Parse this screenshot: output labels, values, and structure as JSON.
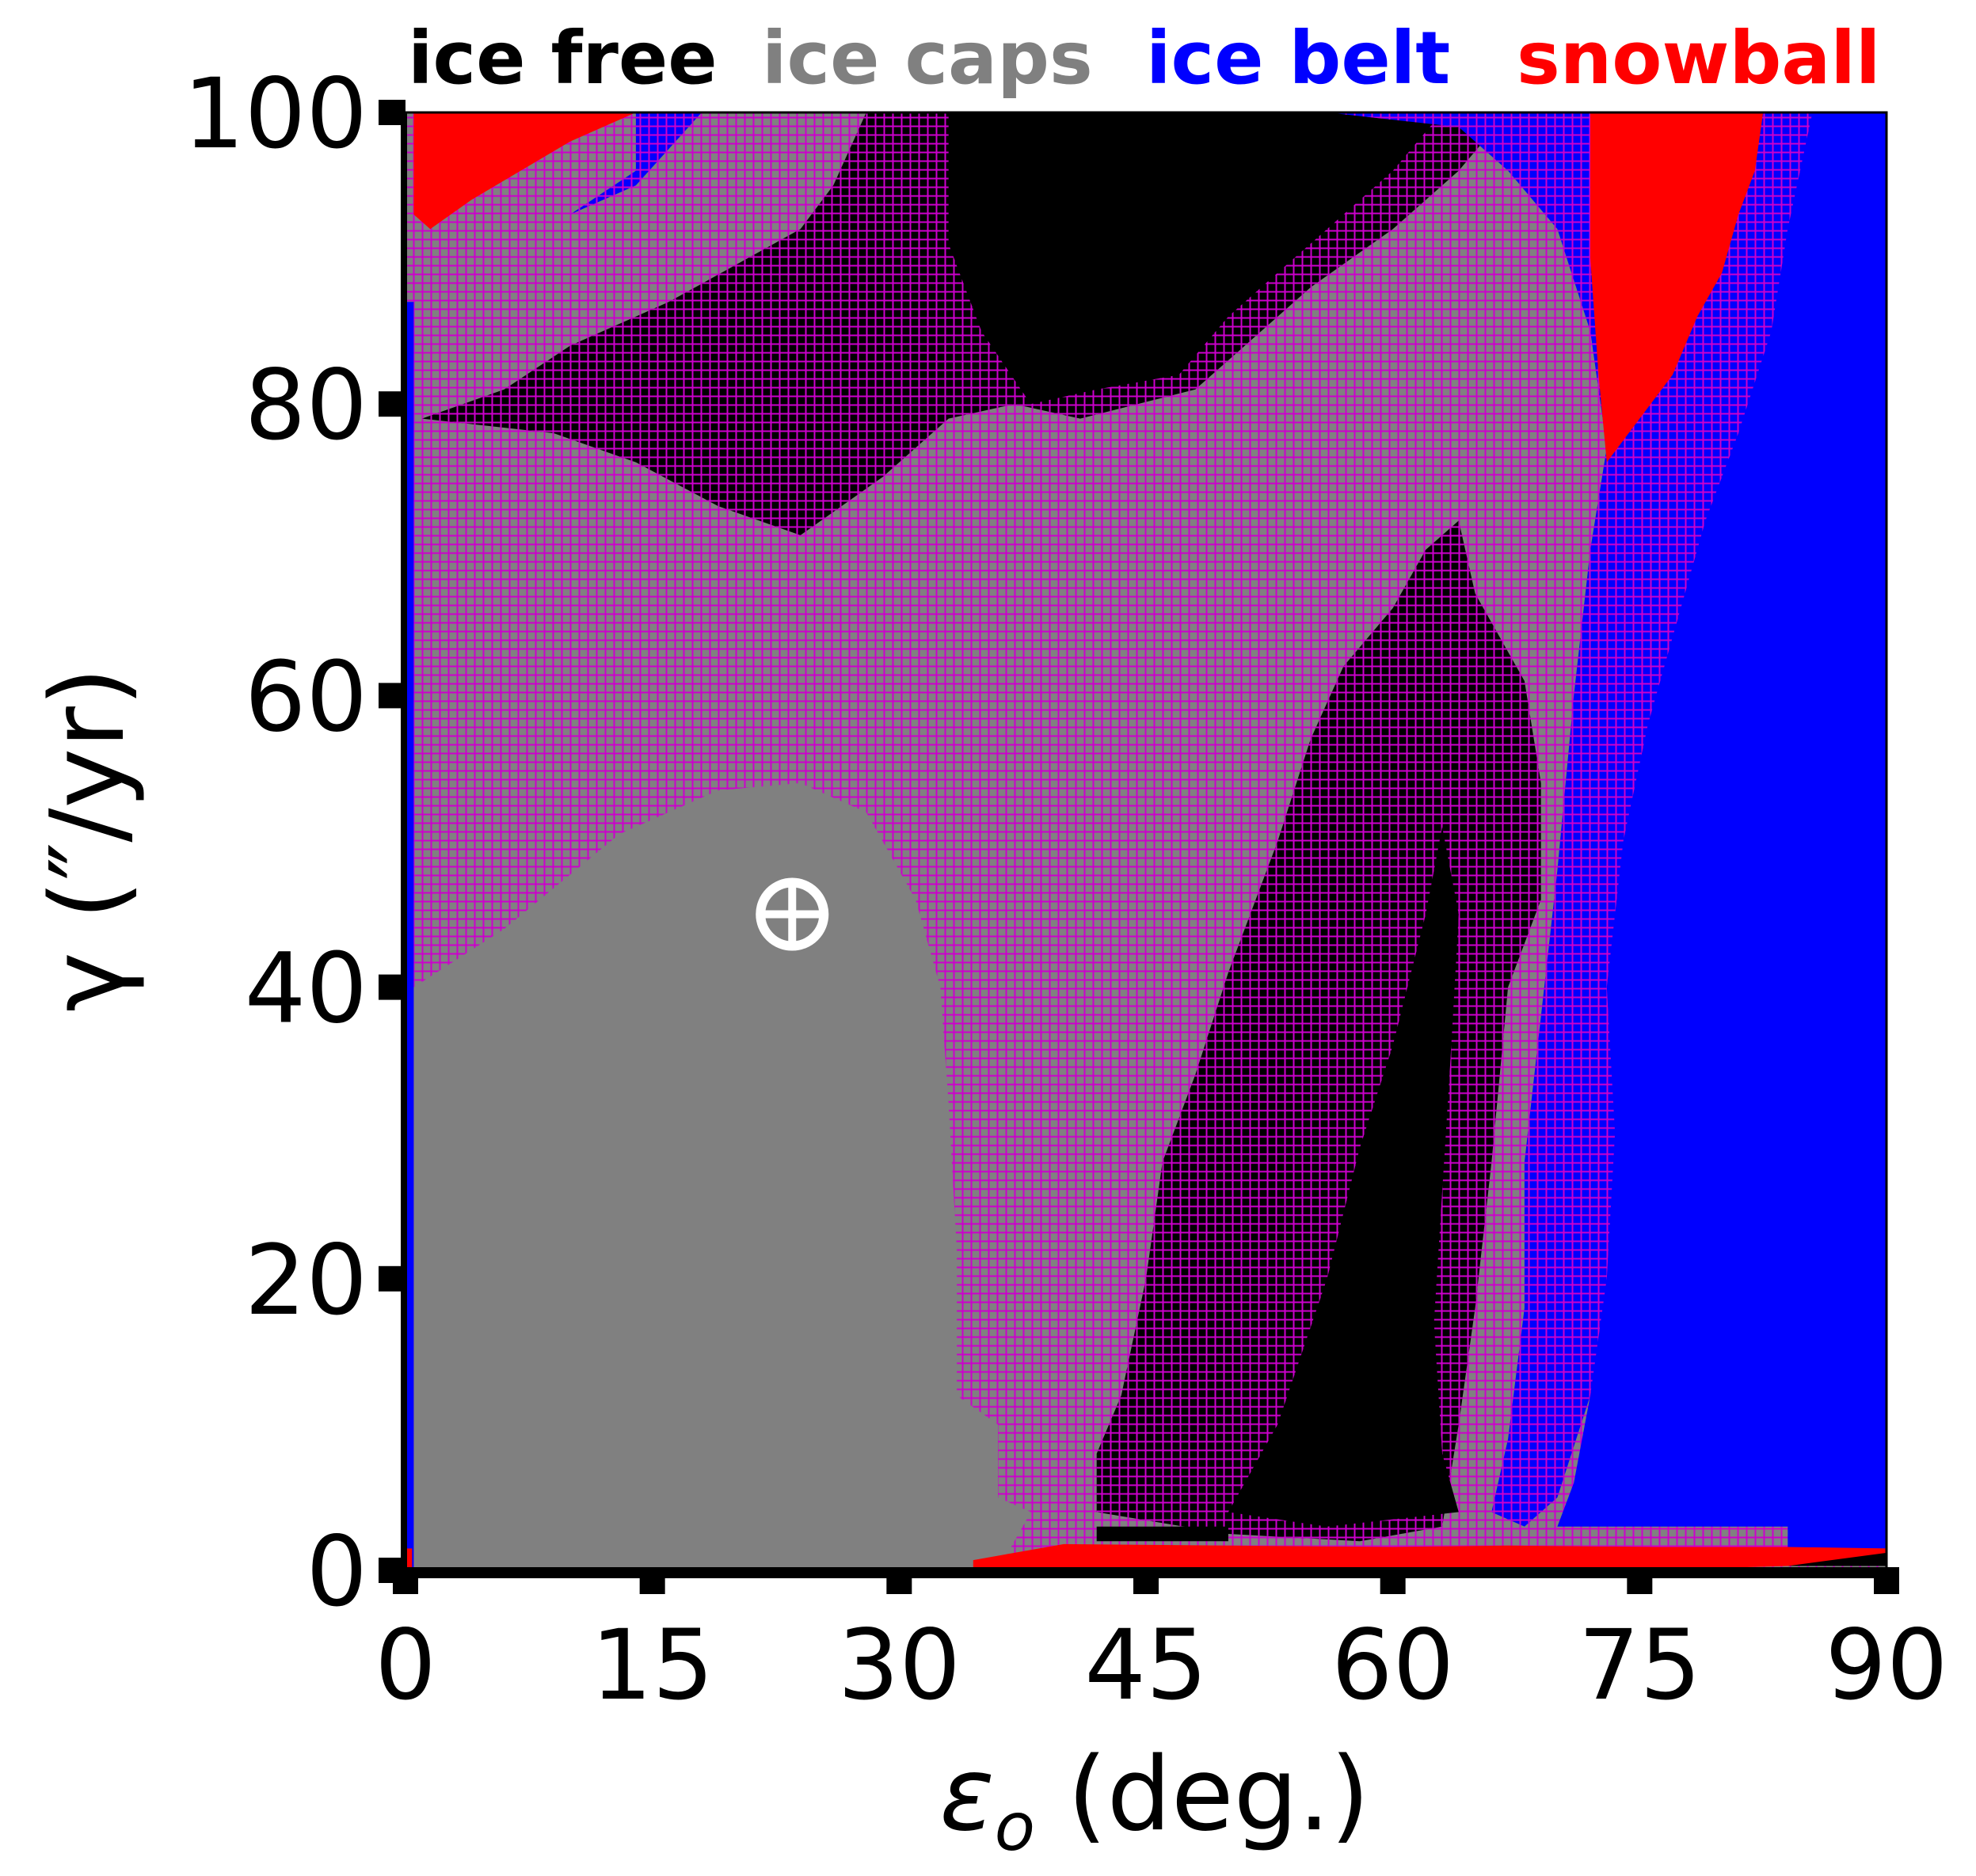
{
  "chart_data": {
    "type": "heatmap",
    "title": "",
    "xlabel": "ε",
    "xlabel_sub": "o",
    "xlabel_unit": " (deg.)",
    "ylabel": "γ (″/yr)",
    "xlim": [
      0,
      90
    ],
    "ylim": [
      0,
      100
    ],
    "x_ticks": [
      0,
      15,
      30,
      45,
      60,
      75,
      90
    ],
    "y_ticks": [
      0,
      20,
      40,
      60,
      80,
      100
    ],
    "x_tick_labels": [
      "0",
      "15",
      "30",
      "45",
      "60",
      "75",
      "90"
    ],
    "y_tick_labels": [
      "0",
      "20",
      "40",
      "60",
      "80",
      "100"
    ],
    "legend_placement": "above plot",
    "categories": [
      {
        "name": "ice free",
        "color": "#000000"
      },
      {
        "name": "ice caps",
        "color": "#808080"
      },
      {
        "name": "ice belt",
        "color": "#0000ff"
      },
      {
        "name": "snowball",
        "color": "#ff0000"
      }
    ],
    "hatch": {
      "color": "#cc00cc",
      "style": "+"
    },
    "regions": [
      {
        "state": "ice caps",
        "hatched": false,
        "polygon": [
          [
            0.5,
            0
          ],
          [
            0.5,
            40
          ],
          [
            6,
            44
          ],
          [
            13,
            50.5
          ],
          [
            19,
            53.5
          ],
          [
            24,
            54
          ],
          [
            28,
            52
          ],
          [
            31,
            46
          ],
          [
            32.5,
            40
          ],
          [
            33,
            32
          ],
          [
            33.5,
            22
          ],
          [
            33.5,
            12
          ],
          [
            36,
            10
          ],
          [
            36,
            5
          ],
          [
            38,
            4
          ],
          [
            36.5,
            1
          ],
          [
            34,
            0
          ]
        ]
      },
      {
        "state": "ice free",
        "hatched": true,
        "polygon": [
          [
            1,
            79
          ],
          [
            6,
            81
          ],
          [
            10,
            84
          ],
          [
            16,
            87
          ],
          [
            24,
            92
          ],
          [
            26,
            95
          ],
          [
            28,
            100
          ],
          [
            67,
            100
          ],
          [
            64,
            96
          ],
          [
            60,
            92
          ],
          [
            55,
            88
          ],
          [
            51,
            84
          ],
          [
            48,
            81
          ],
          [
            41,
            79
          ],
          [
            37,
            80
          ],
          [
            33,
            79
          ],
          [
            29,
            75
          ],
          [
            24,
            71
          ],
          [
            19,
            73
          ],
          [
            14,
            76
          ],
          [
            9,
            78
          ]
        ]
      },
      {
        "state": "ice free",
        "hatched": false,
        "polygon": [
          [
            33,
            100
          ],
          [
            63,
            100
          ],
          [
            60,
            96
          ],
          [
            55,
            91
          ],
          [
            50,
            86
          ],
          [
            47,
            82
          ],
          [
            42,
            81
          ],
          [
            38,
            80
          ],
          [
            35,
            85
          ],
          [
            33,
            91
          ]
        ]
      },
      {
        "state": "ice free",
        "hatched": true,
        "polygon": [
          [
            42,
            4
          ],
          [
            42,
            8
          ],
          [
            43.5,
            12
          ],
          [
            45,
            20
          ],
          [
            46,
            28
          ],
          [
            48,
            34
          ],
          [
            50,
            41
          ],
          [
            53,
            50
          ],
          [
            55,
            57
          ],
          [
            57,
            62
          ],
          [
            60,
            66
          ],
          [
            62,
            70
          ],
          [
            64,
            72
          ],
          [
            65,
            67
          ],
          [
            68,
            61
          ],
          [
            69,
            54
          ],
          [
            69,
            46
          ],
          [
            67,
            40
          ],
          [
            66,
            28
          ],
          [
            65,
            18
          ],
          [
            64,
            10
          ],
          [
            63,
            3
          ],
          [
            58,
            2
          ],
          [
            50,
            2.5
          ]
        ]
      },
      {
        "state": "ice free",
        "hatched": false,
        "polygon": [
          [
            50,
            4
          ],
          [
            53,
            10
          ],
          [
            56,
            20
          ],
          [
            58,
            29
          ],
          [
            60,
            36
          ],
          [
            62,
            45
          ],
          [
            63,
            51
          ],
          [
            64,
            45
          ],
          [
            63.5,
            35
          ],
          [
            63,
            26
          ],
          [
            62.5,
            17
          ],
          [
            63,
            8
          ],
          [
            64,
            4
          ],
          [
            56,
            3
          ]
        ]
      },
      {
        "state": "ice free",
        "hatched": false,
        "polygon": [
          [
            42,
            2
          ],
          [
            42,
            3
          ],
          [
            50,
            3
          ],
          [
            50,
            2
          ]
        ]
      },
      {
        "state": "ice free",
        "hatched": false,
        "polygon": [
          [
            84,
            0.3
          ],
          [
            84,
            1.5
          ],
          [
            90,
            1.5
          ],
          [
            90,
            0.3
          ]
        ]
      },
      {
        "state": "ice belt",
        "hatched": true,
        "polygon": [
          [
            56,
            100
          ],
          [
            64,
            99
          ],
          [
            67,
            96
          ],
          [
            70,
            92
          ],
          [
            72,
            85
          ],
          [
            73,
            77
          ],
          [
            72,
            70
          ],
          [
            71,
            60
          ],
          [
            70,
            48
          ],
          [
            69,
            38
          ],
          [
            68,
            28
          ],
          [
            68,
            18
          ],
          [
            67,
            9
          ],
          [
            66,
            4
          ],
          [
            68,
            3
          ],
          [
            70,
            5
          ],
          [
            72,
            12
          ],
          [
            74,
            25
          ],
          [
            76,
            40
          ],
          [
            78,
            55
          ],
          [
            80,
            68
          ],
          [
            82,
            78
          ],
          [
            84,
            86
          ],
          [
            85,
            92
          ],
          [
            86,
            100
          ]
        ]
      },
      {
        "state": "ice belt",
        "hatched": false,
        "polygon": [
          [
            70,
            3
          ],
          [
            71,
            6
          ],
          [
            72,
            12
          ],
          [
            73,
            20
          ],
          [
            73.5,
            30
          ],
          [
            73,
            40
          ],
          [
            74,
            50
          ],
          [
            75.5,
            58
          ],
          [
            77.5,
            66
          ],
          [
            79,
            72
          ],
          [
            81,
            78
          ],
          [
            83,
            85
          ],
          [
            84,
            92
          ],
          [
            85.5,
            100
          ],
          [
            90,
            100
          ],
          [
            90,
            1.5
          ],
          [
            84,
            1.5
          ],
          [
            84,
            3
          ]
        ]
      },
      {
        "state": "ice belt",
        "hatched": false,
        "polygon": [
          [
            0,
            0
          ],
          [
            0,
            87
          ],
          [
            0.5,
            87
          ],
          [
            0.5,
            0
          ]
        ]
      },
      {
        "state": "ice belt",
        "hatched": true,
        "polygon": [
          [
            14,
            100
          ],
          [
            18,
            100
          ],
          [
            14,
            95
          ],
          [
            10,
            93
          ],
          [
            14,
            96
          ]
        ]
      },
      {
        "state": "snowball",
        "hatched": false,
        "polygon": [
          [
            0.5,
            93
          ],
          [
            1.5,
            92
          ],
          [
            4,
            94
          ],
          [
            7,
            96
          ],
          [
            10,
            98
          ],
          [
            14,
            100
          ],
          [
            0.5,
            100
          ]
        ]
      },
      {
        "state": "snowball",
        "hatched": false,
        "polygon": [
          [
            72,
            100
          ],
          [
            82.5,
            100
          ],
          [
            82,
            96
          ],
          [
            81,
            93
          ],
          [
            80,
            89
          ],
          [
            78.5,
            86
          ],
          [
            77,
            82
          ],
          [
            75,
            79
          ],
          [
            73,
            76
          ],
          [
            72.5,
            82
          ],
          [
            72,
            90
          ]
        ]
      },
      {
        "state": "snowball",
        "hatched": false,
        "polygon": [
          [
            34.5,
            0
          ],
          [
            34.5,
            0.7
          ],
          [
            37,
            1.2
          ],
          [
            40,
            1.8
          ],
          [
            50,
            1.7
          ],
          [
            60,
            1.6
          ],
          [
            67,
            1.7
          ],
          [
            76,
            1.6
          ],
          [
            84,
            1.6
          ],
          [
            90,
            1.5
          ],
          [
            90,
            1.2
          ],
          [
            84,
            0.3
          ],
          [
            75,
            0
          ],
          [
            50,
            0
          ]
        ]
      },
      {
        "state": "snowball",
        "hatched": false,
        "polygon": [
          [
            0,
            0
          ],
          [
            0,
            1.5
          ],
          [
            0.4,
            1.5
          ],
          [
            0.4,
            0
          ]
        ]
      }
    ],
    "annotations": [
      {
        "label": "⊕",
        "meaning": "Earth",
        "x": 23.5,
        "y": 45
      }
    ]
  }
}
